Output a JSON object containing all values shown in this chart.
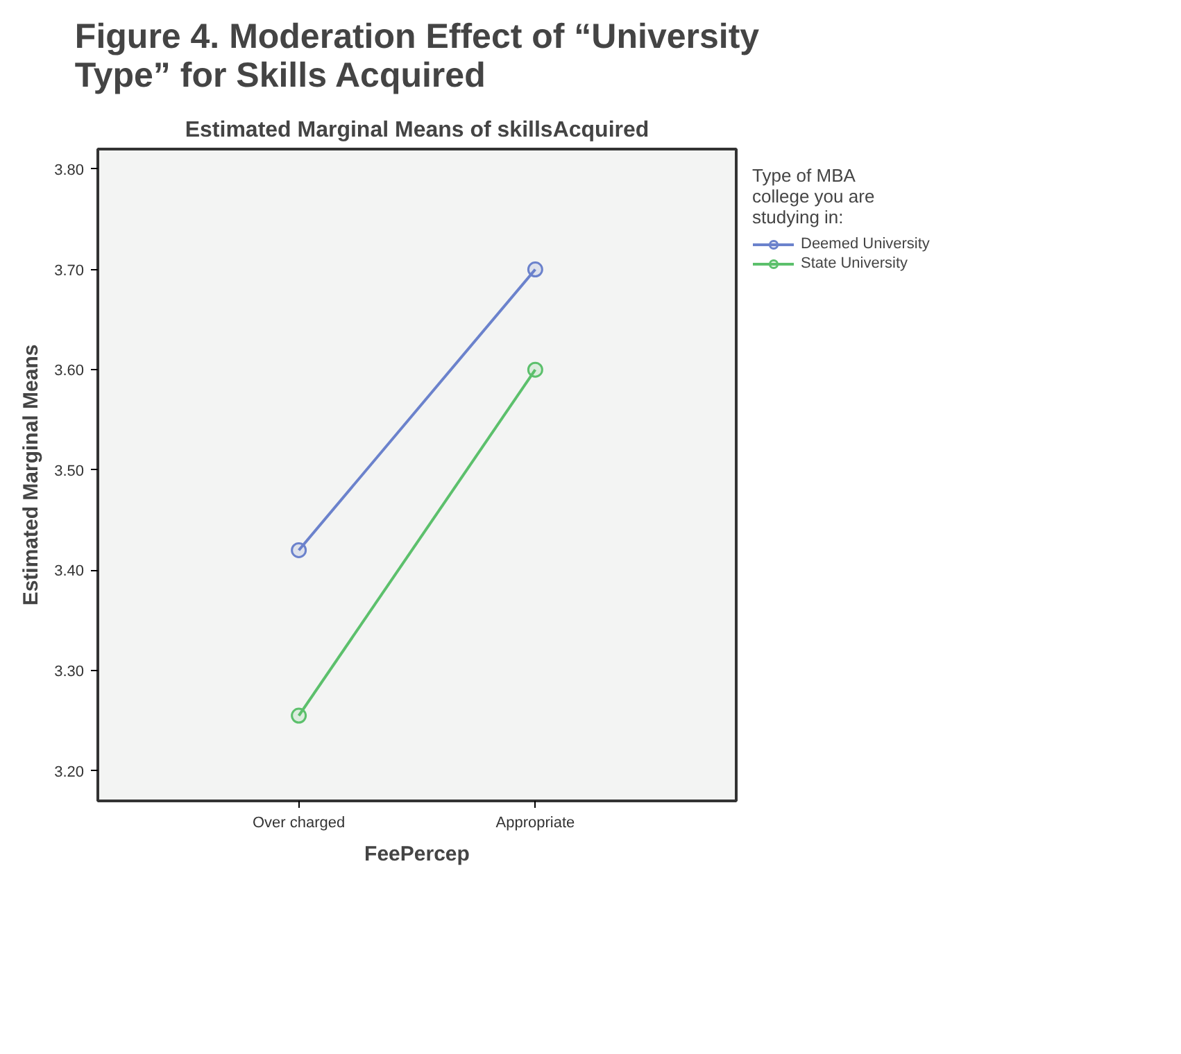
{
  "chart_data": {
    "type": "line",
    "title": "Figure 4. Moderation Effect of “University Type” for Skills Acquired",
    "subtitle": "Estimated Marginal Means of skillsAcquired",
    "xlabel": "FeePercep",
    "ylabel": "Estimated Marginal Means",
    "legend_title": "Type of MBA college you are studying in:",
    "categories": [
      "Over charged",
      "Appropriate"
    ],
    "series": [
      {
        "name": "Deemed University",
        "color": "#6b82cc",
        "values": [
          3.42,
          3.7
        ]
      },
      {
        "name": "State University",
        "color": "#5cc06c",
        "values": [
          3.255,
          3.6
        ]
      }
    ],
    "ylim": [
      3.17,
      3.82
    ],
    "yticks": [
      {
        "value": 3.2,
        "label": "3.20"
      },
      {
        "value": 3.3,
        "label": "3.30"
      },
      {
        "value": 3.4,
        "label": "3.40"
      },
      {
        "value": 3.5,
        "label": "3.50"
      },
      {
        "value": 3.6,
        "label": "3.60"
      },
      {
        "value": 3.7,
        "label": "3.70"
      },
      {
        "value": 3.8,
        "label": "3.80"
      }
    ],
    "grid": false,
    "legend": "top right",
    "marker": "circle",
    "line_style": "solid"
  }
}
